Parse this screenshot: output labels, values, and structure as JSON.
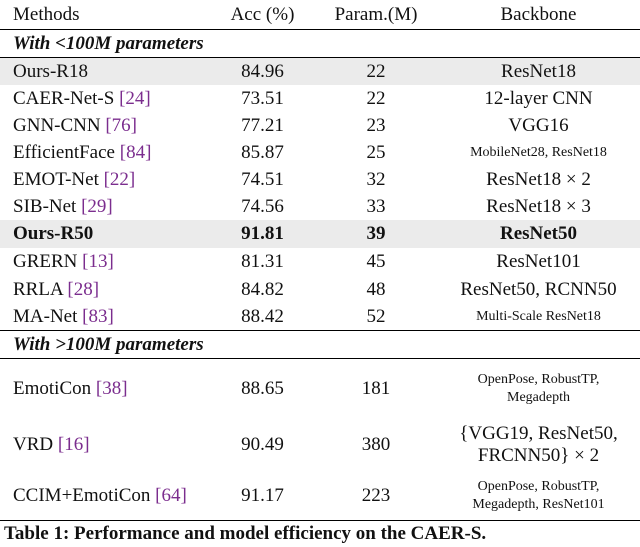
{
  "header": [
    "Methods",
    "Acc (%)",
    "Param.(M)",
    "Backbone"
  ],
  "sections": [
    {
      "title": "With <100M parameters",
      "rows": [
        {
          "method": "Ours-R18",
          "acc": "84.96",
          "params": "22",
          "backbone": [
            "ResNet18"
          ]
        },
        {
          "method": "CAER-Net-S",
          "ref": "[24]",
          "acc": "73.51",
          "params": "22",
          "backbone": [
            "12-layer CNN"
          ]
        },
        {
          "method": "GNN-CNN",
          "ref": "[76]",
          "acc": "77.21",
          "params": "23",
          "backbone": [
            "VGG16"
          ]
        },
        {
          "method": "EfficientFace",
          "ref": "[84]",
          "acc": "85.87",
          "params": "25",
          "backbone": [
            "MobileNet28, ResNet18"
          ]
        },
        {
          "method": "EMOT-Net",
          "ref": "[22]",
          "acc": "74.51",
          "params": "32",
          "backbone": [
            "ResNet18 × 2"
          ]
        },
        {
          "method": "SIB-Net",
          "ref": "[29]",
          "acc": "74.56",
          "params": "33",
          "backbone": [
            "ResNet18 × 3"
          ]
        },
        {
          "method": "Ours-R50",
          "acc": "91.81",
          "params": "39",
          "backbone": [
            "ResNet50"
          ]
        },
        {
          "method": "GRERN",
          "ref": "[13]",
          "acc": "81.31",
          "params": "45",
          "backbone": [
            "ResNet101"
          ]
        },
        {
          "method": "RRLA",
          "ref": "[28]",
          "acc": "84.82",
          "params": "48",
          "backbone": [
            "ResNet50, RCNN50"
          ]
        },
        {
          "method": "MA-Net",
          "ref": "[83]",
          "acc": "88.42",
          "params": "52",
          "backbone": [
            "Multi-Scale ResNet18"
          ]
        }
      ]
    },
    {
      "title": "With >100M parameters",
      "rows": [
        {
          "method": "EmotiCon",
          "ref": "[38]",
          "acc": "88.65",
          "params": "181",
          "backbone": [
            "OpenPose, RobustTP,",
            "Megadepth"
          ]
        },
        {
          "method": "VRD",
          "ref": "[16]",
          "acc": "90.49",
          "params": "380",
          "backbone": [
            "{VGG19, ResNet50,",
            "FRCNN50} × 2"
          ]
        },
        {
          "method": "CCIM+EmotiCon",
          "ref": "[64]",
          "acc": "91.17",
          "params": "223",
          "backbone": [
            "OpenPose, RobustTP,",
            "Megadepth, ResNet101"
          ]
        }
      ]
    }
  ],
  "caption": "Table 1: Performance and model efficiency on the CAER-S."
}
